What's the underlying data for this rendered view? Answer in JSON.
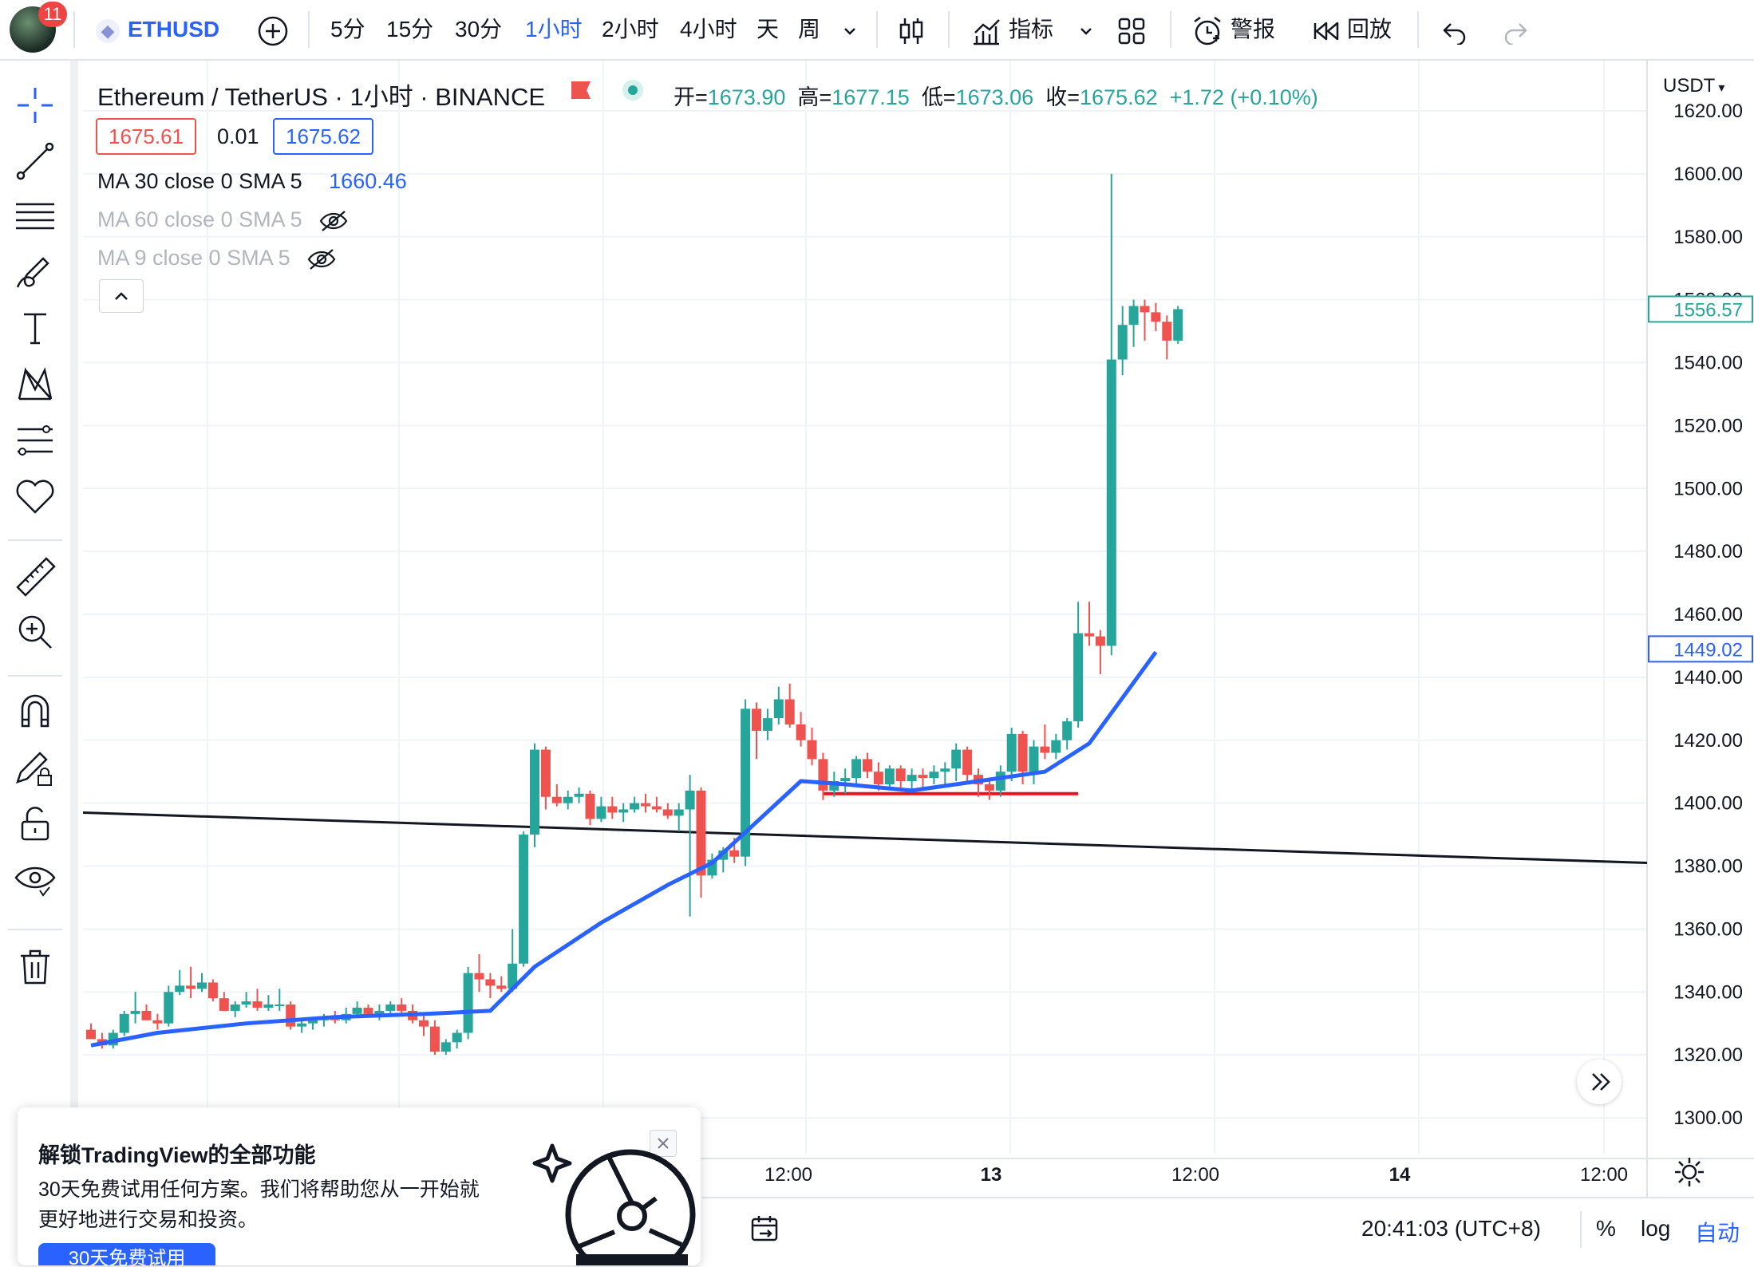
{
  "topbar": {
    "badge_count": "11",
    "symbol": "ETHUSD",
    "intervals": [
      "5分",
      "15分",
      "30分",
      "1小时",
      "2小时",
      "4小时",
      "天",
      "周"
    ],
    "active_interval": "1小时",
    "indicators_label": "指标",
    "alert_label": "警报",
    "replay_label": "回放"
  },
  "legend": {
    "title": "Ethereum / TetherUS · 1小时 · BINANCE",
    "open_label": "开=",
    "open": "1673.90",
    "high_label": "高=",
    "high": "1677.15",
    "low_label": "低=",
    "low": "1673.06",
    "close_label": "收=",
    "close": "1675.62",
    "change": "+1.72 (+0.10%)",
    "bid": "1675.61",
    "spread": "0.01",
    "ask": "1675.62",
    "indicators": [
      {
        "label": "MA 30 close 0 SMA 5",
        "value": "1660.46",
        "visible": true
      },
      {
        "label": "MA 60 close 0 SMA 5",
        "value": "",
        "visible": false
      },
      {
        "label": "MA 9 close 0 SMA 5",
        "value": "",
        "visible": false
      }
    ]
  },
  "price_axis": {
    "currency": "USDT",
    "current_price_label": "1556.57",
    "ma_price_label": "1449.02"
  },
  "time_axis": [
    "12:00",
    "13",
    "12:00",
    "14",
    "12:00"
  ],
  "bottombar": {
    "clock": "20:41:03 (UTC+8)",
    "percent_label": "%",
    "log_label": "log",
    "auto_label": "自动"
  },
  "promo": {
    "title": "解锁TradingView的全部功能",
    "body_line1": "30天免费试用任何方案。我们将帮助您从一开始就",
    "body_line2": "更好地进行交易和投资。",
    "cta": "30天免费试用"
  },
  "colors": {
    "up": "#26a69a",
    "down": "#ef5350",
    "accent": "#2962ff",
    "ma_line": "#2962ff",
    "support_line": "#e8141c"
  },
  "chart_data": {
    "type": "candlestick",
    "symbol": "ETHUSD",
    "interval": "1h",
    "ylim": [
      1300,
      1620
    ],
    "yticks": [
      1300,
      1320,
      1340,
      1360,
      1380,
      1400,
      1420,
      1440,
      1460,
      1480,
      1500,
      1520,
      1540,
      1560,
      1580,
      1600,
      1620
    ],
    "candles": [
      [
        1328,
        1330,
        1325,
        1325
      ],
      [
        1325,
        1327,
        1322,
        1323
      ],
      [
        1323,
        1328,
        1322,
        1327
      ],
      [
        1327,
        1334,
        1326,
        1333
      ],
      [
        1333,
        1340,
        1330,
        1334
      ],
      [
        1334,
        1336,
        1331,
        1331
      ],
      [
        1331,
        1333,
        1328,
        1330
      ],
      [
        1330,
        1342,
        1329,
        1340
      ],
      [
        1340,
        1347,
        1339,
        1342
      ],
      [
        1342,
        1348,
        1338,
        1341
      ],
      [
        1341,
        1346,
        1340,
        1343
      ],
      [
        1343,
        1344,
        1337,
        1338
      ],
      [
        1338,
        1340,
        1334,
        1334
      ],
      [
        1334,
        1337,
        1332,
        1336
      ],
      [
        1336,
        1340,
        1335,
        1337
      ],
      [
        1337,
        1341,
        1334,
        1335
      ],
      [
        1335,
        1339,
        1334,
        1336
      ],
      [
        1336,
        1341,
        1334,
        1336
      ],
      [
        1336,
        1337,
        1328,
        1329
      ],
      [
        1329,
        1331,
        1327,
        1330
      ],
      [
        1330,
        1332,
        1328,
        1331
      ],
      [
        1331,
        1333,
        1329,
        1332
      ],
      [
        1332,
        1334,
        1330,
        1331
      ],
      [
        1331,
        1335,
        1330,
        1333
      ],
      [
        1333,
        1337,
        1332,
        1335
      ],
      [
        1335,
        1336,
        1332,
        1333
      ],
      [
        1333,
        1336,
        1331,
        1334
      ],
      [
        1334,
        1337,
        1333,
        1336
      ],
      [
        1336,
        1338,
        1333,
        1334
      ],
      [
        1334,
        1336,
        1330,
        1331
      ],
      [
        1331,
        1333,
        1326,
        1329
      ],
      [
        1329,
        1331,
        1320,
        1321
      ],
      [
        1321,
        1325,
        1320,
        1324
      ],
      [
        1324,
        1328,
        1322,
        1327
      ],
      [
        1327,
        1348,
        1325,
        1346
      ],
      [
        1346,
        1352,
        1340,
        1344
      ],
      [
        1344,
        1346,
        1338,
        1342
      ],
      [
        1342,
        1345,
        1340,
        1341
      ],
      [
        1341,
        1360,
        1340,
        1349
      ],
      [
        1349,
        1391,
        1348,
        1390
      ],
      [
        1390,
        1419,
        1386,
        1417
      ],
      [
        1417,
        1418,
        1398,
        1402
      ],
      [
        1402,
        1406,
        1399,
        1400
      ],
      [
        1400,
        1404,
        1398,
        1402
      ],
      [
        1402,
        1405,
        1400,
        1403
      ],
      [
        1403,
        1404,
        1393,
        1395
      ],
      [
        1395,
        1402,
        1394,
        1399
      ],
      [
        1399,
        1402,
        1395,
        1397
      ],
      [
        1397,
        1400,
        1394,
        1398
      ],
      [
        1398,
        1402,
        1397,
        1400
      ],
      [
        1400,
        1403,
        1397,
        1399
      ],
      [
        1399,
        1402,
        1397,
        1398
      ],
      [
        1398,
        1400,
        1395,
        1396
      ],
      [
        1396,
        1400,
        1391,
        1398
      ],
      [
        1398,
        1409,
        1364,
        1404
      ],
      [
        1404,
        1405,
        1370,
        1377
      ],
      [
        1377,
        1384,
        1376,
        1382
      ],
      [
        1382,
        1386,
        1378,
        1385
      ],
      [
        1385,
        1389,
        1381,
        1383
      ],
      [
        1383,
        1433,
        1380,
        1430
      ],
      [
        1430,
        1432,
        1414,
        1423
      ],
      [
        1423,
        1430,
        1420,
        1427
      ],
      [
        1427,
        1437,
        1425,
        1433
      ],
      [
        1433,
        1438,
        1424,
        1425
      ],
      [
        1425,
        1429,
        1418,
        1420
      ],
      [
        1420,
        1424,
        1412,
        1414
      ],
      [
        1414,
        1416,
        1401,
        1404
      ],
      [
        1404,
        1410,
        1402,
        1407
      ],
      [
        1407,
        1411,
        1403,
        1408
      ],
      [
        1408,
        1415,
        1406,
        1414
      ],
      [
        1414,
        1416,
        1408,
        1410
      ],
      [
        1410,
        1413,
        1404,
        1406
      ],
      [
        1406,
        1412,
        1404,
        1411
      ],
      [
        1411,
        1412,
        1405,
        1407
      ],
      [
        1407,
        1411,
        1404,
        1409
      ],
      [
        1409,
        1411,
        1405,
        1408
      ],
      [
        1408,
        1412,
        1406,
        1410
      ],
      [
        1410,
        1413,
        1406,
        1411
      ],
      [
        1411,
        1419,
        1407,
        1417
      ],
      [
        1417,
        1418,
        1406,
        1409
      ],
      [
        1409,
        1411,
        1402,
        1406
      ],
      [
        1406,
        1408,
        1401,
        1404
      ],
      [
        1404,
        1412,
        1402,
        1410
      ],
      [
        1410,
        1424,
        1407,
        1422
      ],
      [
        1422,
        1423,
        1406,
        1410
      ],
      [
        1410,
        1420,
        1406,
        1418
      ],
      [
        1418,
        1425,
        1414,
        1416
      ],
      [
        1416,
        1422,
        1414,
        1420
      ],
      [
        1420,
        1427,
        1417,
        1426
      ],
      [
        1426,
        1464,
        1424,
        1454
      ],
      [
        1454,
        1464,
        1450,
        1453
      ],
      [
        1453,
        1455,
        1441,
        1450
      ],
      [
        1450,
        1600,
        1447,
        1541
      ],
      [
        1541,
        1558,
        1536,
        1552
      ],
      [
        1552,
        1560,
        1545,
        1558
      ],
      [
        1558,
        1560,
        1547,
        1556
      ],
      [
        1556,
        1559,
        1550,
        1553
      ],
      [
        1553,
        1555,
        1541,
        1547
      ],
      [
        1547,
        1558,
        1546,
        1557
      ]
    ],
    "ma_line": {
      "name": "MA 30 close 0 SMA 5",
      "values": [
        [
          0,
          1323
        ],
        [
          6,
          1327
        ],
        [
          14,
          1330
        ],
        [
          22,
          1332
        ],
        [
          30,
          1333
        ],
        [
          36,
          1334
        ],
        [
          40,
          1348
        ],
        [
          46,
          1362
        ],
        [
          52,
          1374
        ],
        [
          56,
          1381
        ],
        [
          60,
          1394
        ],
        [
          64,
          1407
        ],
        [
          68,
          1406
        ],
        [
          74,
          1404
        ],
        [
          80,
          1407
        ],
        [
          86,
          1410
        ],
        [
          90,
          1419
        ],
        [
          96,
          1448
        ]
      ]
    },
    "drawings": [
      {
        "type": "trend_line",
        "color": "#131722",
        "from": [
          -1,
          1397
        ],
        "to": [
          98,
          1381
        ]
      },
      {
        "type": "horizontal_segment",
        "color": "#e8141c",
        "from": [
          66,
          1403
        ],
        "to": [
          89,
          1403
        ]
      }
    ]
  }
}
